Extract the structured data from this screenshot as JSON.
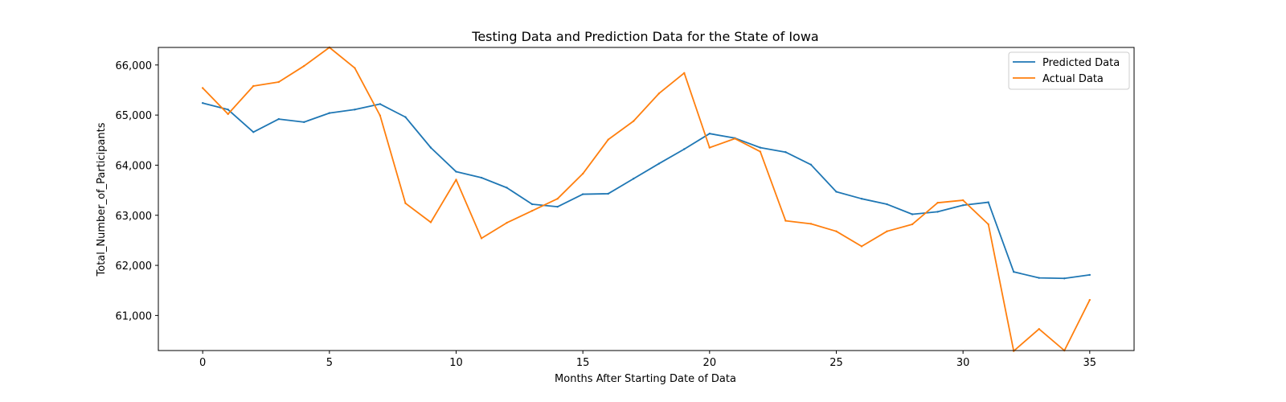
{
  "chart_data": {
    "type": "line",
    "title": "Testing Data and Prediction Data for the State of Iowa",
    "xlabel": "Months After Starting Date of Data",
    "ylabel": "Total_Number_of_Participants",
    "xlim": [
      -1.75,
      36.75
    ],
    "ylim": [
      60300,
      66350
    ],
    "x_ticks": [
      0,
      5,
      10,
      15,
      20,
      25,
      30,
      35
    ],
    "x_tick_labels": [
      "0",
      "5",
      "10",
      "15",
      "20",
      "25",
      "30",
      "35"
    ],
    "y_ticks": [
      61000,
      62000,
      63000,
      64000,
      65000,
      66000
    ],
    "y_tick_labels": [
      "61,000",
      "62,000",
      "63,000",
      "64,000",
      "65,000",
      "66,000"
    ],
    "grid": false,
    "legend_position": "top-right",
    "x": [
      0,
      1,
      2,
      3,
      4,
      5,
      6,
      7,
      8,
      9,
      10,
      11,
      12,
      13,
      14,
      15,
      16,
      17,
      18,
      19,
      20,
      21,
      22,
      23,
      24,
      25,
      26,
      27,
      28,
      29,
      30,
      31,
      32,
      33,
      34,
      35
    ],
    "series": [
      {
        "name": "Predicted Data",
        "color": "#1f77b4",
        "values": [
          65240,
          65110,
          64660,
          64920,
          64860,
          65040,
          65110,
          65220,
          64960,
          64350,
          63870,
          63750,
          63550,
          63220,
          63170,
          63420,
          63430,
          63730,
          64030,
          64320,
          64630,
          64540,
          64350,
          64260,
          64010,
          63470,
          63330,
          63220,
          63020,
          63070,
          63200,
          63260,
          61870,
          61750,
          61740,
          61810
        ]
      },
      {
        "name": "Actual Data",
        "color": "#ff7f0e",
        "values": [
          65540,
          65020,
          65580,
          65660,
          65980,
          66350,
          65940,
          64990,
          63240,
          62860,
          63710,
          62540,
          62850,
          63090,
          63330,
          63830,
          64510,
          64880,
          65430,
          65840,
          64350,
          64530,
          64270,
          62890,
          62830,
          62680,
          62380,
          62680,
          62820,
          63250,
          63300,
          62820,
          60290,
          60730,
          60300,
          61310
        ]
      }
    ]
  }
}
